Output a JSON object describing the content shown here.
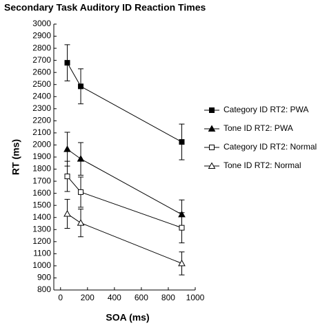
{
  "chart_data": {
    "type": "line",
    "title": "Secondary Task Auditory ID Reaction Times",
    "x_label": "SOA (ms)",
    "y_label": "RT (ms)",
    "x": [
      50,
      150,
      900
    ],
    "series": [
      {
        "name": "Category ID RT2: PWA",
        "color": "#000000",
        "marker": "square",
        "filled": true,
        "values": [
          2680,
          2485,
          2025
        ],
        "errors": [
          150,
          145,
          148
        ]
      },
      {
        "name": "Tone ID RT2: PWA",
        "color": "#000000",
        "marker": "triangle",
        "filled": true,
        "values": [
          1965,
          1885,
          1425
        ],
        "errors": [
          140,
          135,
          120
        ]
      },
      {
        "name": "Category ID RT2: Normal",
        "color": "#000000",
        "marker": "square",
        "filled": false,
        "values": [
          1740,
          1610,
          1315
        ],
        "errors": [
          125,
          125,
          125
        ]
      },
      {
        "name": "Tone ID RT2: Normal",
        "color": "#000000",
        "marker": "triangle",
        "filled": false,
        "values": [
          1430,
          1355,
          1020
        ],
        "errors": [
          120,
          115,
          95
        ]
      }
    ],
    "xlim": [
      -50,
      1000
    ],
    "xticks": [
      0,
      200,
      400,
      600,
      800,
      1000
    ],
    "ylim": [
      800,
      3000
    ],
    "yticks": [
      800,
      900,
      1000,
      1100,
      1200,
      1300,
      1400,
      1500,
      1600,
      1700,
      1800,
      1900,
      2000,
      2100,
      2200,
      2300,
      2400,
      2500,
      2600,
      2700,
      2800,
      2900,
      3000
    ],
    "legend": "right"
  }
}
